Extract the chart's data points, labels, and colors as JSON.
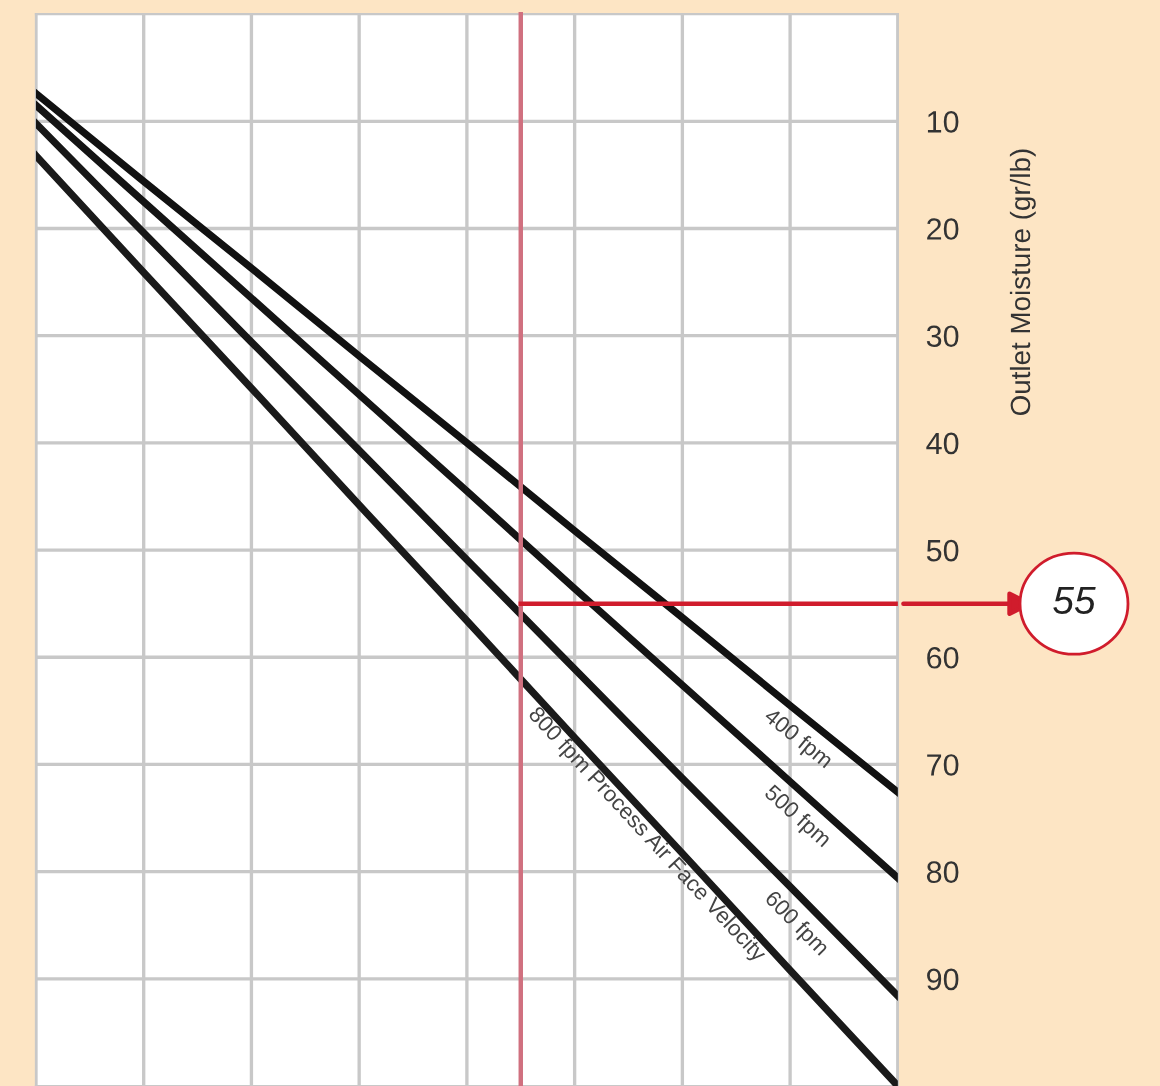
{
  "chart_data": {
    "type": "line",
    "ylabel": "Outlet Moisture (gr/lb)",
    "categories": [
      null,
      null,
      null,
      null,
      null,
      null,
      null,
      null,
      null
    ],
    "ylim": [
      100,
      0
    ],
    "yticks": [
      10,
      20,
      30,
      40,
      50,
      60,
      70,
      80,
      90
    ],
    "tick_labels": "y",
    "grid": true,
    "marker": "none",
    "line_style": "solid",
    "series": [
      {
        "name": "400 fpm",
        "color": "#111111",
        "values": [
          7.4,
          15.6,
          23.7,
          31.9,
          40.0,
          48.2,
          56.3,
          64.5,
          72.6
        ]
      },
      {
        "name": "500 fpm",
        "color": "#141414",
        "values": [
          8.5,
          17.5,
          26.5,
          35.5,
          44.5,
          53.6,
          62.6,
          71.6,
          80.6
        ]
      },
      {
        "name": "600 fpm",
        "color": "#171717",
        "values": [
          10.2,
          20.4,
          30.6,
          40.7,
          50.9,
          61.1,
          71.3,
          81.4,
          91.6
        ]
      },
      {
        "name": "800 fpm Process Air Face Velocity",
        "color": "#1a1a1a",
        "values": [
          13.2,
          24.1,
          34.9,
          45.8,
          56.6,
          67.5,
          78.3,
          89.2,
          100
        ]
      }
    ],
    "ref_lines": [
      {
        "axis": "y",
        "value": 55,
        "label": "55",
        "color": "#d01c2c",
        "line_style": "solid"
      }
    ]
  }
}
